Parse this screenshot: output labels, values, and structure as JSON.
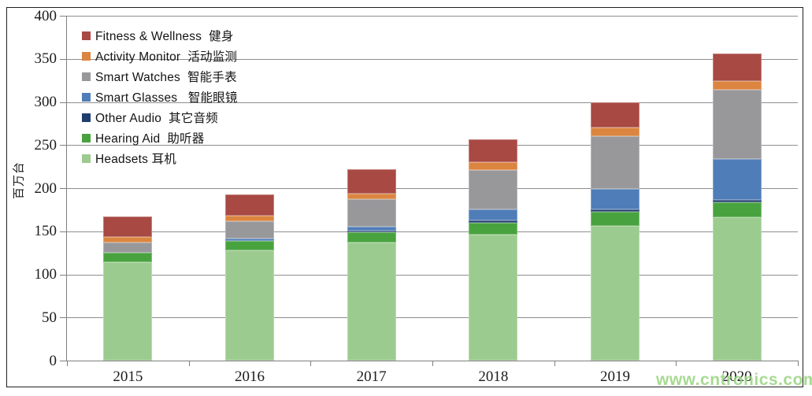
{
  "watermark": {
    "text": "www.cntronics.com",
    "color": "#96d37c"
  },
  "y_axis": {
    "label": "百万台",
    "min": 0,
    "max": 400,
    "step": 50,
    "tick_labels": [
      "0",
      "50",
      "100",
      "150",
      "200",
      "250",
      "300",
      "350",
      "400"
    ]
  },
  "x_axis": {
    "categories": [
      "2015",
      "2016",
      "2017",
      "2018",
      "2019",
      "2020"
    ]
  },
  "colors": {
    "gridline": "#8e8e8e",
    "axis": "#7f7f7f",
    "border": "#1f1f1f",
    "text": "#1c1c1c"
  },
  "chart_data": {
    "type": "bar",
    "stacked": true,
    "title": "",
    "xlabel": "",
    "ylabel": "百万台",
    "ylim": [
      0,
      400
    ],
    "ytick_step": 50,
    "grid": true,
    "legend_position": "top-left-inside",
    "categories": [
      "2015",
      "2016",
      "2017",
      "2018",
      "2019",
      "2020"
    ],
    "series": [
      {
        "name": "fitness-wellness",
        "label": "Fitness & Wellness  健身",
        "color": "#a84944",
        "values": [
          24,
          25,
          28,
          27,
          30,
          32
        ]
      },
      {
        "name": "activity-monitor",
        "label": "Activity Monitor  活动监测",
        "color": "#db8540",
        "values": [
          6,
          6,
          7,
          9,
          10,
          10
        ]
      },
      {
        "name": "smart-watches",
        "label": "Smart Watches  智能手表",
        "color": "#98989b",
        "values": [
          12,
          20,
          32,
          46,
          61,
          80
        ]
      },
      {
        "name": "smart-glasses",
        "label": "Smart Glasses   智能眼镜",
        "color": "#4f7db8",
        "values": [
          0,
          3,
          4,
          12,
          24,
          48
        ]
      },
      {
        "name": "other-audio",
        "label": "Other Audio  其它音频",
        "color": "#1f3e6e",
        "values": [
          0,
          0,
          2,
          3,
          2,
          2
        ]
      },
      {
        "name": "hearing-aid",
        "label": "Hearing Aid  助听器",
        "color": "#48a33f",
        "values": [
          11,
          11,
          12,
          14,
          17,
          18
        ]
      },
      {
        "name": "headsets",
        "label": "Headsets 耳机",
        "color": "#9ccb8f",
        "values": [
          114,
          128,
          137,
          146,
          156,
          166
        ]
      }
    ],
    "stack_order_bottom_to_top": [
      "headsets",
      "hearing-aid",
      "other-audio",
      "smart-glasses",
      "smart-watches",
      "activity-monitor",
      "fitness-wellness"
    ],
    "totals": [
      167,
      193,
      222,
      257,
      300,
      356
    ]
  }
}
